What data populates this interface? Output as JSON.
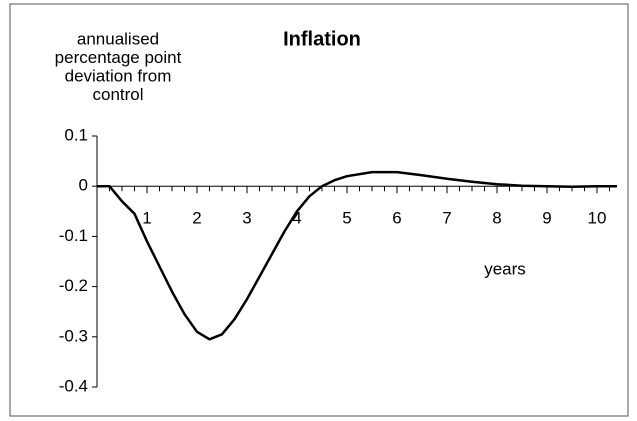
{
  "chart_data": {
    "type": "line",
    "title": "Inflation",
    "ylabel": [
      "annualised",
      "percentage point",
      "deviation from",
      "control"
    ],
    "xlabel": "years",
    "x": [
      0,
      0.25,
      0.5,
      0.75,
      1,
      1.25,
      1.5,
      1.75,
      2,
      2.25,
      2.5,
      2.75,
      3,
      3.25,
      3.5,
      3.75,
      4,
      4.25,
      4.5,
      4.75,
      5,
      5.5,
      6,
      6.5,
      7,
      7.5,
      8,
      8.5,
      9,
      9.5,
      10,
      10.4
    ],
    "series": [
      {
        "name": "Inflation",
        "color": "#000000",
        "values": [
          0,
          0,
          -0.03,
          -0.055,
          -0.11,
          -0.16,
          -0.21,
          -0.255,
          -0.29,
          -0.305,
          -0.295,
          -0.265,
          -0.225,
          -0.18,
          -0.135,
          -0.09,
          -0.05,
          -0.02,
          0,
          0.012,
          0.02,
          0.028,
          0.028,
          0.022,
          0.015,
          0.009,
          0.004,
          0.001,
          0,
          -0.001,
          0,
          0
        ]
      }
    ],
    "xlim": [
      0,
      10.4
    ],
    "xticks": [
      1,
      2,
      3,
      4,
      5,
      6,
      7,
      8,
      9,
      10
    ],
    "ylim": [
      -0.4,
      0.1
    ],
    "yticks": [
      0.1,
      0,
      -0.1,
      -0.2,
      -0.3,
      -0.4
    ],
    "grid": false
  }
}
